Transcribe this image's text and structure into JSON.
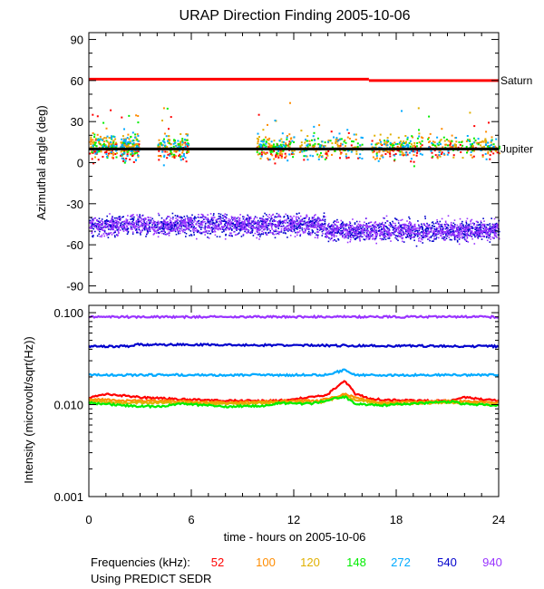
{
  "chart_data": [
    {
      "type": "scatter",
      "title": "URAP Direction Finding  2005-10-06",
      "ylabel": "Azimuthal angle (deg)",
      "xlim": [
        0,
        24
      ],
      "ylim": [
        -95,
        95
      ],
      "y_ticks": [
        90,
        60,
        30,
        0,
        -30,
        -60,
        -90
      ],
      "reference_lines": [
        {
          "name": "Saturn",
          "color": "#ff0000",
          "segments": [
            {
              "x": [
                0,
                16.4
              ],
              "y": 61
            },
            {
              "x": [
                16.4,
                24
              ],
              "y": 60
            }
          ]
        },
        {
          "name": "Jupiter",
          "color": "#000000",
          "segments": [
            {
              "x": [
                0,
                24
              ],
              "y": 10
            }
          ]
        }
      ],
      "series_clusters": [
        {
          "frequency": "52",
          "color": "#ff0000",
          "x_range": [
            0,
            24
          ],
          "y_center": 9,
          "spread": 5
        },
        {
          "frequency": "100",
          "color": "#ff8c00",
          "x_range": [
            0,
            24
          ],
          "y_center": 13,
          "spread": 7
        },
        {
          "frequency": "120",
          "color": "#e0b000",
          "x_range": [
            0,
            24
          ],
          "y_center": 13,
          "spread": 7
        },
        {
          "frequency": "148",
          "color": "#00ee00",
          "x_range": [
            0,
            24
          ],
          "y_center": 13,
          "spread": 6
        },
        {
          "frequency": "272",
          "color": "#00aaff",
          "x_range": [
            0,
            24
          ],
          "y_center": 12,
          "spread": 8
        },
        {
          "frequency": "540",
          "color": "#0000cc",
          "x_range": [
            0,
            24
          ],
          "y_center": -45,
          "spread": 6
        },
        {
          "frequency": "940",
          "color": "#9933ff",
          "x_range": [
            0,
            24
          ],
          "y_center": -45,
          "spread": 6
        }
      ],
      "annotations": [
        "Saturn",
        "Jupiter"
      ]
    },
    {
      "type": "line",
      "ylabel": "Intensity (microvolt/sqrt(Hz))",
      "xlabel": "time - hours on 2005-10-06",
      "xlim": [
        0,
        24
      ],
      "ylim": [
        0.001,
        0.12
      ],
      "y_scale": "log",
      "x_ticks": [
        0,
        6,
        12,
        18,
        24
      ],
      "y_tick_labels": [
        "0.100",
        "0.010",
        "0.001"
      ],
      "series": [
        {
          "name": "940",
          "color": "#9933ff",
          "x": [
            0,
            24
          ],
          "y": [
            0.09,
            0.09
          ]
        },
        {
          "name": "540",
          "color": "#0000cc",
          "x": [
            0,
            2.5,
            2.7,
            24
          ],
          "y": [
            0.043,
            0.043,
            0.045,
            0.043
          ]
        },
        {
          "name": "272",
          "color": "#00aaff",
          "x": [
            0,
            3,
            14,
            15,
            15.6,
            17,
            24
          ],
          "y": [
            0.021,
            0.021,
            0.021,
            0.024,
            0.021,
            0.021,
            0.021
          ]
        },
        {
          "name": "52",
          "color": "#ff0000",
          "x": [
            0,
            1,
            3,
            5,
            8,
            11,
            13,
            14,
            15,
            15.6,
            16.5,
            19,
            21,
            22,
            24
          ],
          "y": [
            0.012,
            0.013,
            0.012,
            0.0115,
            0.011,
            0.011,
            0.012,
            0.013,
            0.018,
            0.013,
            0.0115,
            0.011,
            0.011,
            0.012,
            0.011
          ]
        },
        {
          "name": "100",
          "color": "#ff8c00",
          "x": [
            0,
            2,
            4,
            8,
            12,
            13.5,
            15,
            15.5,
            17,
            21,
            24
          ],
          "y": [
            0.0115,
            0.011,
            0.011,
            0.0105,
            0.011,
            0.011,
            0.013,
            0.012,
            0.0105,
            0.011,
            0.0105
          ]
        },
        {
          "name": "120",
          "color": "#e0b000",
          "x": [
            0,
            2,
            4,
            8,
            12,
            13.5,
            15,
            15.5,
            17,
            21,
            24
          ],
          "y": [
            0.011,
            0.0105,
            0.0105,
            0.0102,
            0.0105,
            0.0105,
            0.0125,
            0.0115,
            0.0102,
            0.0105,
            0.01
          ]
        },
        {
          "name": "148",
          "color": "#00ee00",
          "x": [
            0,
            2,
            4,
            5.5,
            8,
            10.5,
            11,
            13,
            15,
            15.6,
            17,
            21.4,
            21.8,
            24
          ],
          "y": [
            0.0105,
            0.0098,
            0.0095,
            0.0102,
            0.0095,
            0.0098,
            0.0104,
            0.0102,
            0.0122,
            0.0102,
            0.0098,
            0.0108,
            0.0102,
            0.0098
          ]
        }
      ]
    }
  ],
  "legend": {
    "prefix": "Frequencies (kHz):",
    "items": [
      {
        "label": "52",
        "color": "#ff0000"
      },
      {
        "label": "100",
        "color": "#ff8c00"
      },
      {
        "label": "120",
        "color": "#e0b000"
      },
      {
        "label": "148",
        "color": "#00ee00"
      },
      {
        "label": "272",
        "color": "#00aaff"
      },
      {
        "label": "540",
        "color": "#0000cc"
      },
      {
        "label": "940",
        "color": "#9933ff"
      }
    ]
  },
  "footer": {
    "source_note": "Using PREDICT SEDR"
  }
}
